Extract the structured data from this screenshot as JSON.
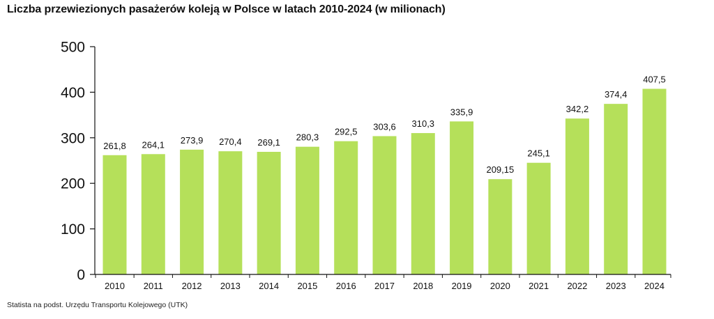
{
  "title": "Liczba przewiezionych pasażerów koleją w Polsce w latach 2010-2024 (w milionach)",
  "source": "Statista na podst. Urzędu Transportu Kolejowego (UTK)",
  "colors": {
    "bar": "#b5e05a",
    "axis": "#111111",
    "text": "#111111"
  },
  "chart_data": {
    "type": "bar",
    "title": "Liczba przewiezionych pasażerów koleją w Polsce w latach 2010-2024 (w milionach)",
    "xlabel": "",
    "ylabel": "",
    "ylim": [
      0,
      500
    ],
    "yticks": [
      0,
      100,
      200,
      300,
      400,
      500
    ],
    "grid": false,
    "legend": "none",
    "categories": [
      "2010",
      "2011",
      "2012",
      "2013",
      "2014",
      "2015",
      "2016",
      "2017",
      "2018",
      "2019",
      "2020",
      "2021",
      "2022",
      "2023",
      "2024"
    ],
    "values": [
      261.8,
      264.1,
      273.9,
      270.4,
      269.1,
      280.3,
      292.5,
      303.6,
      310.3,
      335.9,
      209.15,
      245.1,
      342.2,
      374.4,
      407.5
    ],
    "value_labels": [
      "261,8",
      "264,1",
      "273,9",
      "270,4",
      "269,1",
      "280,3",
      "292,5",
      "303,6",
      "310,3",
      "335,9",
      "209,15",
      "245,1",
      "342,2",
      "374,4",
      "407,5"
    ]
  }
}
